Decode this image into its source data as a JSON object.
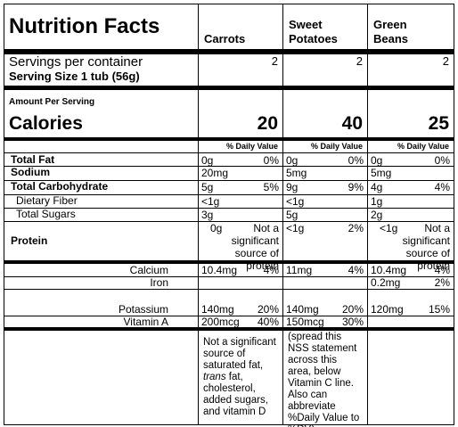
{
  "title": "Nutrition Facts",
  "columns": [
    "Carrots",
    "Sweet Potatoes",
    "Green Beans"
  ],
  "servings": {
    "label": "Servings per container",
    "values": [
      2,
      2,
      2
    ]
  },
  "serving_size": "Serving Size  1 tub (56g)",
  "amount_per_serving": "Amount Per Serving",
  "calories": {
    "label": "Calories",
    "values": [
      20,
      40,
      25
    ]
  },
  "dv_headers": [
    "% Daily Value",
    "% Daily Value",
    "% Daily Value"
  ],
  "nutrients": [
    {
      "label": "Total Fat",
      "emphasis": true,
      "indent": false,
      "cells": [
        {
          "amount": "0g",
          "dv": "0%"
        },
        {
          "amount": "0g",
          "dv": "0%"
        },
        {
          "amount": "0g",
          "dv": "0%"
        }
      ]
    },
    {
      "label": "Sodium",
      "emphasis": true,
      "indent": false,
      "cells": [
        {
          "amount": "20mg"
        },
        {
          "amount": "5mg"
        },
        {
          "amount": "5mg"
        }
      ]
    },
    {
      "label": "Total Carbohydrate",
      "emphasis": true,
      "indent": false,
      "cells": [
        {
          "amount": "5g",
          "dv": "5%"
        },
        {
          "amount": "9g",
          "dv": "9%"
        },
        {
          "amount": "4g",
          "dv": "4%"
        }
      ]
    },
    {
      "label": "Dietary Fiber",
      "emphasis": false,
      "indent": true,
      "cells": [
        {
          "amount": "<1g"
        },
        {
          "amount": "<1g"
        },
        {
          "amount": "1g"
        }
      ]
    },
    {
      "label": "Total Sugars",
      "emphasis": false,
      "indent": true,
      "cells": [
        {
          "amount": "3g"
        },
        {
          "amount": "5g"
        },
        {
          "amount": "2g"
        }
      ]
    },
    {
      "label": "Protein",
      "emphasis": true,
      "indent": false,
      "cells": [
        {
          "amount": "0g",
          "note": "Not a significant source of protein"
        },
        {
          "amount": "<1g",
          "dv": "2%"
        },
        {
          "amount": "<1g",
          "note": "Not a significant source of protein"
        }
      ]
    }
  ],
  "minerals": [
    {
      "label": "Calcium",
      "cells": [
        {
          "amount": "10.4mg",
          "dv": "4%"
        },
        {
          "amount": "11mg",
          "dv": "4%"
        },
        {
          "amount": "10.4mg",
          "dv": "4%"
        }
      ]
    },
    {
      "label": "Iron",
      "cells": [
        null,
        null,
        {
          "amount": "0.2mg",
          "dv": "2%"
        }
      ]
    },
    {
      "label": "Potassium",
      "cells": [
        {
          "amount": "140mg",
          "dv": "20%"
        },
        {
          "amount": "140mg",
          "dv": "20%"
        },
        {
          "amount": "120mg",
          "dv": "15%"
        }
      ]
    },
    {
      "label": "Vitamin A",
      "cells": [
        {
          "amount": "200mcg",
          "dv": "40%"
        },
        {
          "amount": "150mcg",
          "dv": "30%"
        },
        null
      ]
    }
  ],
  "footnotes": [
    [
      "Not a significant source of saturated fat, ",
      "trans",
      " fat, cholesterol, added sugars, and vitamin D"
    ],
    [
      "(spread this NSS statement across this area, below Vitamin C line. Also can abbreviate %Daily Value to %DV)"
    ],
    null
  ]
}
